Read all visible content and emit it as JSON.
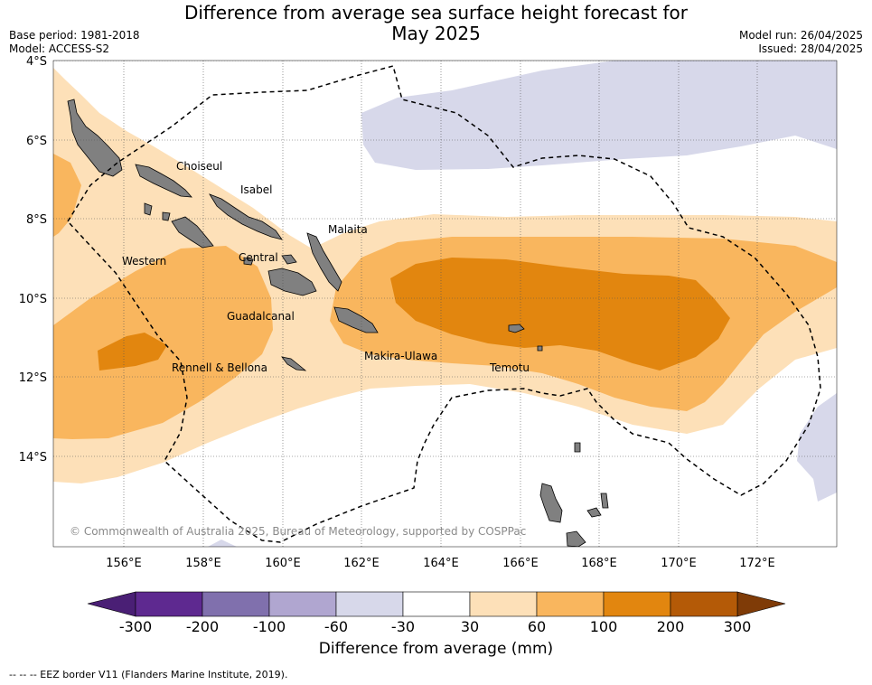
{
  "title_line1": "Difference from average sea surface height forecast for",
  "title_line2": "May 2025",
  "meta": {
    "base_period": "Base period: 1981-2018",
    "model": "Model: ACCESS-S2",
    "model_run": "Model run: 26/04/2025",
    "issued": "Issued: 28/04/2025"
  },
  "map": {
    "lat_labels": [
      "4°S",
      "6°S",
      "8°S",
      "10°S",
      "12°S",
      "14°S"
    ],
    "lon_labels": [
      "156°E",
      "158°E",
      "160°E",
      "162°E",
      "164°E",
      "166°E",
      "168°E",
      "170°E",
      "172°E"
    ],
    "places": [
      "Choiseul",
      "Isabel",
      "Malaita",
      "Western",
      "Central",
      "Guadalcanal",
      "Makira-Ulawa",
      "Rennell & Bellona",
      "Temotu"
    ],
    "copyright": "© Commonwealth of Australia 2025, Bureau of Meteorology, supported by COSPPac",
    "land_color": "#808080",
    "eez_style": "dashed-black"
  },
  "colorbar": {
    "ticks": [
      "-300",
      "-200",
      "-100",
      "-60",
      "-30",
      "30",
      "60",
      "100",
      "200",
      "300"
    ],
    "colors": [
      "#4a1f75",
      "#5e2990",
      "#8070ad",
      "#b0a6d0",
      "#d7d8ea",
      "#ffffff",
      "#fde0b8",
      "#f9b65e",
      "#e2860f",
      "#b45a07",
      "#7f3b07"
    ],
    "label": "Difference from average (mm)"
  },
  "legend_note": "--  --  -- EEZ border V11 (Flanders Marine Institute, 2019)."
}
